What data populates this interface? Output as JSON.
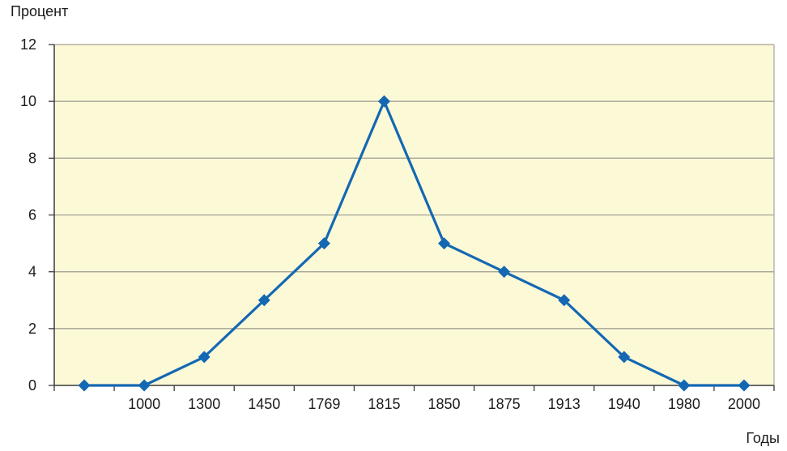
{
  "chart_data": {
    "type": "line",
    "title": "",
    "ylabel": "Процент",
    "xlabel": "Годы",
    "categories": [
      "",
      "1000",
      "1300",
      "1450",
      "1769",
      "1815",
      "1850",
      "1875",
      "1913",
      "1940",
      "1980",
      "2000"
    ],
    "values": [
      0,
      0,
      1,
      3,
      5,
      10,
      5,
      4,
      3,
      1,
      0,
      0
    ],
    "series": [
      {
        "name": "Процент",
        "values": [
          0,
          0,
          1,
          3,
          5,
          10,
          5,
          4,
          3,
          1,
          0,
          0
        ]
      }
    ],
    "ylim": [
      0,
      12
    ],
    "yticks": [
      0,
      2,
      4,
      6,
      8,
      10,
      12
    ],
    "grid": "horizontal",
    "legend": "none",
    "marker": "diamond",
    "colors": {
      "line": "#1468B3",
      "marker": "#1468B3",
      "plot_background": "#FCF9D7",
      "gridline": "#A5A296",
      "axis": "#3C3C3C",
      "border": "#ACACA4",
      "text": "#1C1C1C",
      "page_background": "#FFFFFF"
    }
  }
}
